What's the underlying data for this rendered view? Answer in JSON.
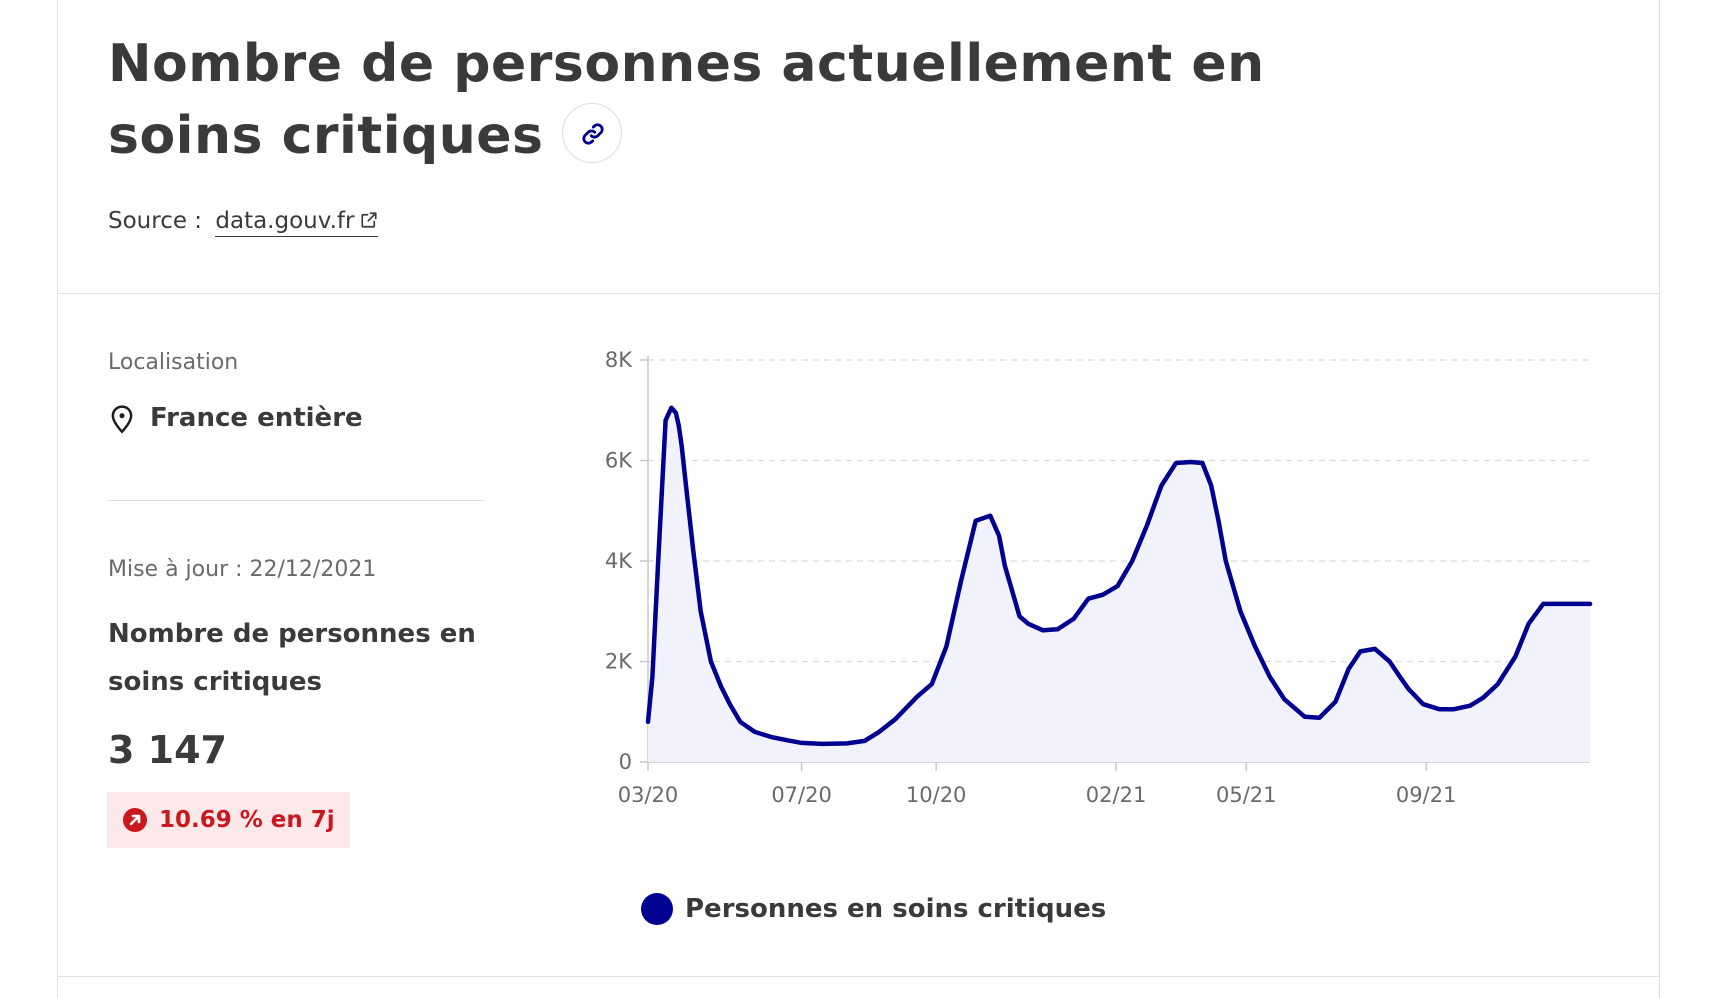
{
  "header": {
    "title": "Nombre de personnes actuellement en soins critiques",
    "source_label": "Source :",
    "source_link": "data.gouv.fr"
  },
  "panel": {
    "location_label": "Localisation",
    "location_value": "France entière",
    "updated": "Mise à jour : 22/12/2021",
    "metric_title": "Nombre de personnes en soins critiques",
    "metric_value": "3 147",
    "trend": "10.69 % en 7j"
  },
  "colors": {
    "series": "#000091",
    "fill": "#f2f2fc",
    "grid": "#d9d9d9",
    "axis": "#c8c8c8",
    "trend_text": "#c9191e",
    "trend_bg": "#fde9e9"
  },
  "chart_data": {
    "type": "area",
    "title": "",
    "xlabel": "",
    "ylabel": "",
    "ylim": [
      0,
      8000
    ],
    "yticks": [
      0,
      2000,
      4000,
      6000,
      8000
    ],
    "ytick_labels": [
      "0",
      "2K",
      "4K",
      "6K",
      "8K"
    ],
    "xticks": [
      "03/20",
      "07/20",
      "10/20",
      "02/21",
      "05/21",
      "09/21"
    ],
    "xrange": [
      "2020-03-18",
      "2021-12-22"
    ],
    "grid": true,
    "legend_position": "bottom",
    "series": [
      {
        "name": "Personnes en soins critiques",
        "x": [
          "2020-03-18",
          "2020-03-21",
          "2020-03-25",
          "2020-03-30",
          "2020-04-03",
          "2020-04-06",
          "2020-04-08",
          "2020-04-10",
          "2020-04-13",
          "2020-04-18",
          "2020-04-23",
          "2020-04-30",
          "2020-05-07",
          "2020-05-13",
          "2020-05-20",
          "2020-05-30",
          "2020-06-10",
          "2020-06-20",
          "2020-07-01",
          "2020-07-15",
          "2020-08-01",
          "2020-08-13",
          "2020-08-23",
          "2020-09-03",
          "2020-09-18",
          "2020-09-28",
          "2020-10-08",
          "2020-10-18",
          "2020-10-28",
          "2020-11-07",
          "2020-11-13",
          "2020-11-17",
          "2020-11-21",
          "2020-11-27",
          "2020-12-03",
          "2020-12-13",
          "2020-12-23",
          "2021-01-03",
          "2021-01-13",
          "2021-01-23",
          "2021-02-02",
          "2021-02-12",
          "2021-02-22",
          "2021-03-04",
          "2021-03-14",
          "2021-03-24",
          "2021-04-01",
          "2021-04-07",
          "2021-04-12",
          "2021-04-17",
          "2021-04-27",
          "2021-05-07",
          "2021-05-17",
          "2021-05-27",
          "2021-06-10",
          "2021-06-20",
          "2021-07-01",
          "2021-07-10",
          "2021-07-18",
          "2021-07-28",
          "2021-08-07",
          "2021-08-14",
          "2021-08-20",
          "2021-08-30",
          "2021-09-10",
          "2021-09-20",
          "2021-10-01",
          "2021-10-10",
          "2021-10-20",
          "2021-11-01",
          "2021-11-10",
          "2021-11-20",
          "2021-11-30",
          "2021-12-10",
          "2021-12-22"
        ],
        "values": [
          800,
          1700,
          4000,
          6800,
          7050,
          6950,
          6700,
          6300,
          5500,
          4200,
          3000,
          2000,
          1500,
          1150,
          800,
          600,
          500,
          440,
          380,
          360,
          370,
          420,
          600,
          850,
          1300,
          1550,
          2300,
          3600,
          4800,
          4900,
          4500,
          3900,
          3500,
          2900,
          2750,
          2620,
          2640,
          2850,
          3250,
          3330,
          3500,
          4000,
          4700,
          5500,
          5950,
          5970,
          5950,
          5500,
          4800,
          4000,
          3000,
          2300,
          1700,
          1250,
          900,
          880,
          1200,
          1850,
          2200,
          2250,
          2000,
          1700,
          1450,
          1150,
          1050,
          1050,
          1120,
          1280,
          1550,
          2100,
          2750,
          3147,
          3147,
          3147,
          3147
        ]
      }
    ]
  }
}
